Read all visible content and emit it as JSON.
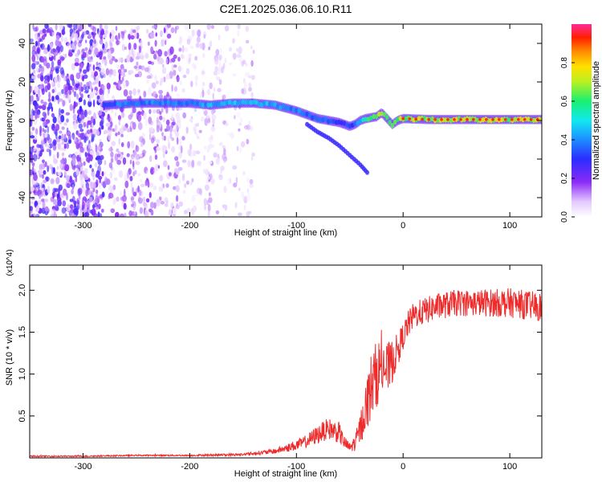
{
  "title": "C2E1.2025.036.06.10.R11",
  "colors": {
    "snr_line": "#ee2a2a",
    "track_core": "#ff2a00",
    "scatter": "#7a2cf0",
    "axis": "#000000"
  },
  "chart_data": [
    {
      "type": "heatmap",
      "xlabel": "Height of straight line (km)",
      "ylabel": "Frequency (Hz)",
      "xlim": [
        -350,
        130
      ],
      "ylim": [
        -50,
        50
      ],
      "xticks": [
        -300,
        -200,
        -100,
        0,
        100
      ],
      "xtick_labels": [
        "-300",
        "-200",
        "-100",
        "0",
        "100"
      ],
      "yticks": [
        -40,
        -20,
        0,
        20,
        40
      ],
      "ytick_labels": [
        "-40",
        "-20",
        "0",
        "20",
        "40"
      ],
      "grid": false,
      "colorbar": {
        "label": "Normalized spectral amplitude",
        "range": [
          0,
          1
        ],
        "ticks": [
          0.0,
          0.2,
          0.4,
          0.6,
          0.8
        ],
        "tick_labels": [
          "0.0",
          "0.2",
          "0.4",
          "0.6",
          "0.8"
        ],
        "colormap": "rainbow (white-purple-blue-cyan-green-yellow-orange-red-magenta)"
      },
      "main_track": [
        {
          "x": -280,
          "y": 8,
          "amp": 0.45
        },
        {
          "x": -250,
          "y": 9,
          "amp": 0.5
        },
        {
          "x": -220,
          "y": 9,
          "amp": 0.5
        },
        {
          "x": -200,
          "y": 9,
          "amp": 0.5
        },
        {
          "x": -180,
          "y": 8,
          "amp": 0.55
        },
        {
          "x": -160,
          "y": 9,
          "amp": 0.55
        },
        {
          "x": -140,
          "y": 9,
          "amp": 0.55
        },
        {
          "x": -120,
          "y": 8,
          "amp": 0.55
        },
        {
          "x": -100,
          "y": 5,
          "amp": 0.5
        },
        {
          "x": -90,
          "y": 3,
          "amp": 0.45
        },
        {
          "x": -80,
          "y": 1,
          "amp": 0.45
        },
        {
          "x": -70,
          "y": 0,
          "amp": 0.45
        },
        {
          "x": -60,
          "y": -1,
          "amp": 0.4
        },
        {
          "x": -50,
          "y": -3,
          "amp": 0.4
        },
        {
          "x": -45,
          "y": -2,
          "amp": 0.45
        },
        {
          "x": -40,
          "y": 0,
          "amp": 0.55
        },
        {
          "x": -35,
          "y": 1,
          "amp": 0.75
        },
        {
          "x": -25,
          "y": 2,
          "amp": 0.8
        },
        {
          "x": -20,
          "y": 4,
          "amp": 0.85
        },
        {
          "x": -15,
          "y": 1,
          "amp": 0.85
        },
        {
          "x": -10,
          "y": -2,
          "amp": 0.85
        },
        {
          "x": -5,
          "y": 0,
          "amp": 0.85
        },
        {
          "x": 0,
          "y": 1,
          "amp": 0.9
        },
        {
          "x": 25,
          "y": 0.5,
          "amp": 0.9
        },
        {
          "x": 50,
          "y": 0.5,
          "amp": 0.92
        },
        {
          "x": 75,
          "y": 0.5,
          "amp": 0.92
        },
        {
          "x": 100,
          "y": 0.5,
          "amp": 0.92
        },
        {
          "x": 130,
          "y": 0.5,
          "amp": 0.9
        }
      ],
      "secondary_branch": [
        {
          "x": -90,
          "y": -2
        },
        {
          "x": -80,
          "y": -6
        },
        {
          "x": -70,
          "y": -9
        },
        {
          "x": -60,
          "y": -13
        },
        {
          "x": -50,
          "y": -18
        },
        {
          "x": -40,
          "y": -23
        },
        {
          "x": -32,
          "y": -28
        }
      ],
      "scatter_regions": [
        {
          "x_range": [
            -350,
            -280
          ],
          "y_range": [
            -50,
            50
          ],
          "density": "high",
          "amp": 0.15
        },
        {
          "x_range": [
            -280,
            -210
          ],
          "y_range": [
            -50,
            50
          ],
          "density": "medium",
          "amp": 0.1
        },
        {
          "x_range": [
            -210,
            -140
          ],
          "y_range": [
            -50,
            50
          ],
          "density": "low",
          "amp": 0.06
        }
      ]
    },
    {
      "type": "line",
      "xlabel": "Height of straight line (km)",
      "ylabel": "SNR (10 * v/v)",
      "y_multiplier": "(x10^4)",
      "xlim": [
        -350,
        130
      ],
      "ylim": [
        0,
        2.3
      ],
      "xticks": [
        -300,
        -200,
        -100,
        0,
        100
      ],
      "xtick_labels": [
        "-300",
        "-200",
        "-100",
        "0",
        "100"
      ],
      "yticks": [
        0.5,
        1.0,
        1.5,
        2.0
      ],
      "ytick_labels": [
        "0.5",
        "1.0",
        "1.5",
        "2.0"
      ],
      "grid": false,
      "series": [
        {
          "color": "#ee2a2a",
          "x": [
            -350,
            -300,
            -250,
            -200,
            -150,
            -120,
            -100,
            -90,
            -80,
            -70,
            -60,
            -55,
            -50,
            -45,
            -40,
            -35,
            -30,
            -25,
            -20,
            -15,
            -10,
            -5,
            0,
            5,
            10,
            20,
            30,
            50,
            70,
            100,
            130
          ],
          "y": [
            0.02,
            0.02,
            0.03,
            0.03,
            0.04,
            0.08,
            0.15,
            0.2,
            0.28,
            0.35,
            0.3,
            0.18,
            0.12,
            0.18,
            0.35,
            0.6,
            0.85,
            1.0,
            1.1,
            1.05,
            1.15,
            1.3,
            1.45,
            1.6,
            1.7,
            1.75,
            1.8,
            1.85,
            1.85,
            1.85,
            1.8
          ],
          "noise": [
            0.005,
            0.005,
            0.005,
            0.006,
            0.01,
            0.02,
            0.04,
            0.05,
            0.07,
            0.08,
            0.08,
            0.05,
            0.04,
            0.06,
            0.12,
            0.18,
            0.25,
            0.25,
            0.22,
            0.2,
            0.16,
            0.12,
            0.1,
            0.1,
            0.1,
            0.1,
            0.1,
            0.1,
            0.1,
            0.11,
            0.11
          ]
        }
      ]
    }
  ]
}
